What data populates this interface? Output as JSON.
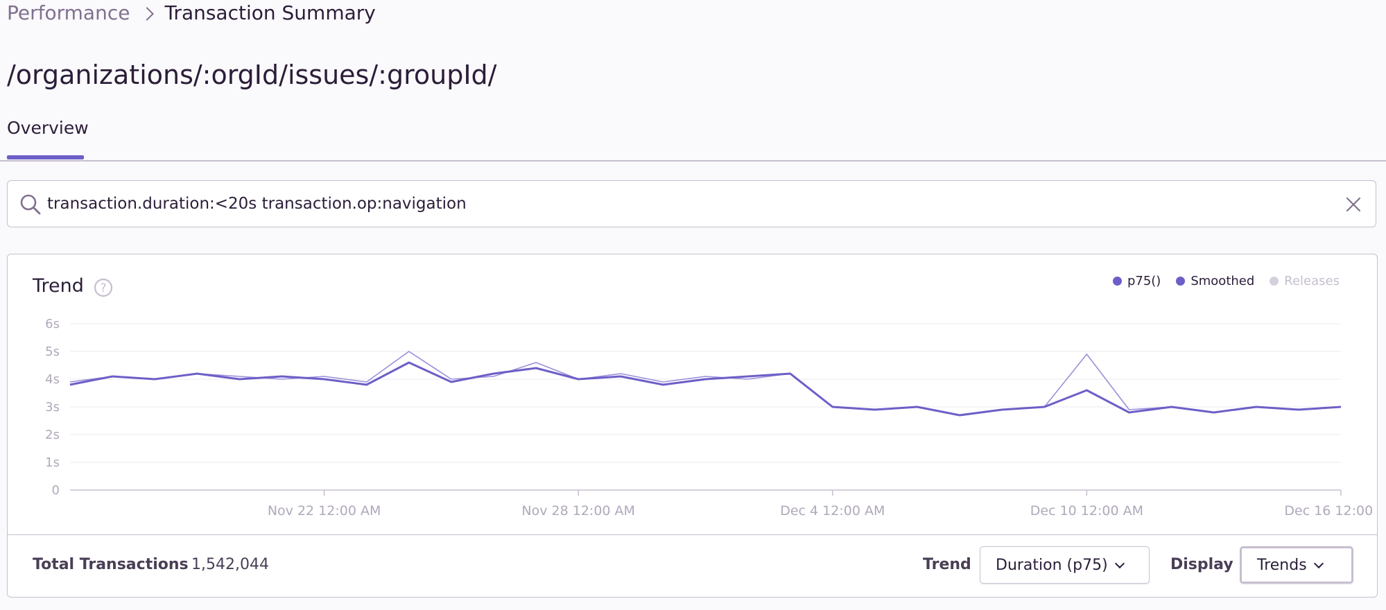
{
  "breadcrumb": {
    "parent": "Performance",
    "current": "Transaction Summary"
  },
  "page": {
    "title": "/organizations/:orgId/issues/:groupId/"
  },
  "tabs": [
    {
      "label": "Overview",
      "active": true
    }
  ],
  "search": {
    "query": "transaction.duration:<20s transaction.op:navigation"
  },
  "panel": {
    "title": "Trend",
    "legend": [
      {
        "label": "p75()",
        "color": "#6c5fc7",
        "active": true
      },
      {
        "label": "Smoothed",
        "color": "#6c5fc7",
        "active": true
      },
      {
        "label": "Releases",
        "color": "#c6becf",
        "active": false
      }
    ],
    "footer": {
      "total_label": "Total Transactions",
      "total_value": "1,542,044",
      "trend_label": "Trend",
      "trend_value": "Duration (p75)",
      "display_label": "Display",
      "display_value": "Trends"
    }
  },
  "chart_data": {
    "type": "line",
    "ylim": [
      0,
      6
    ],
    "y_ticks": [
      "0",
      "1s",
      "2s",
      "3s",
      "4s",
      "5s",
      "6s"
    ],
    "x_ticks": [
      "Nov 22 12:00 AM",
      "Nov 28 12:00 AM",
      "Dec 4 12:00 AM",
      "Dec 10 12:00 AM",
      "Dec 16 12:00 AM"
    ],
    "x_range": [
      "2019-11-16",
      "2019-12-16"
    ],
    "series": [
      {
        "name": "p75()",
        "color": "#9a8fda",
        "x": [
          "2019-11-16",
          "2019-11-17",
          "2019-11-18",
          "2019-11-19",
          "2019-11-20",
          "2019-11-21",
          "2019-11-22",
          "2019-11-23",
          "2019-11-24",
          "2019-11-25",
          "2019-11-26",
          "2019-11-27",
          "2019-11-28",
          "2019-11-29",
          "2019-11-30",
          "2019-12-01",
          "2019-12-02",
          "2019-12-03",
          "2019-12-04",
          "2019-12-05",
          "2019-12-06",
          "2019-12-07",
          "2019-12-08",
          "2019-12-09",
          "2019-12-10",
          "2019-12-11",
          "2019-12-12",
          "2019-12-13",
          "2019-12-14",
          "2019-12-15",
          "2019-12-16"
        ],
        "values": [
          3.9,
          4.1,
          4.0,
          4.2,
          4.1,
          4.0,
          4.1,
          3.9,
          5.0,
          4.0,
          4.1,
          4.6,
          4.0,
          4.2,
          3.9,
          4.1,
          4.0,
          4.2,
          3.0,
          2.9,
          3.0,
          2.7,
          2.9,
          3.0,
          4.9,
          2.9,
          3.0,
          2.8,
          3.0,
          2.9,
          3.0
        ]
      },
      {
        "name": "Smoothed",
        "color": "#6c5fc7",
        "x": [
          "2019-11-16",
          "2019-11-17",
          "2019-11-18",
          "2019-11-19",
          "2019-11-20",
          "2019-11-21",
          "2019-11-22",
          "2019-11-23",
          "2019-11-24",
          "2019-11-25",
          "2019-11-26",
          "2019-11-27",
          "2019-11-28",
          "2019-11-29",
          "2019-11-30",
          "2019-12-01",
          "2019-12-02",
          "2019-12-03",
          "2019-12-04",
          "2019-12-05",
          "2019-12-06",
          "2019-12-07",
          "2019-12-08",
          "2019-12-09",
          "2019-12-10",
          "2019-12-11",
          "2019-12-12",
          "2019-12-13",
          "2019-12-14",
          "2019-12-15",
          "2019-12-16"
        ],
        "values": [
          3.8,
          4.1,
          4.0,
          4.2,
          4.0,
          4.1,
          4.0,
          3.8,
          4.6,
          3.9,
          4.2,
          4.4,
          4.0,
          4.1,
          3.8,
          4.0,
          4.1,
          4.2,
          3.0,
          2.9,
          3.0,
          2.7,
          2.9,
          3.0,
          3.6,
          2.8,
          3.0,
          2.8,
          3.0,
          2.9,
          3.0
        ]
      }
    ]
  }
}
